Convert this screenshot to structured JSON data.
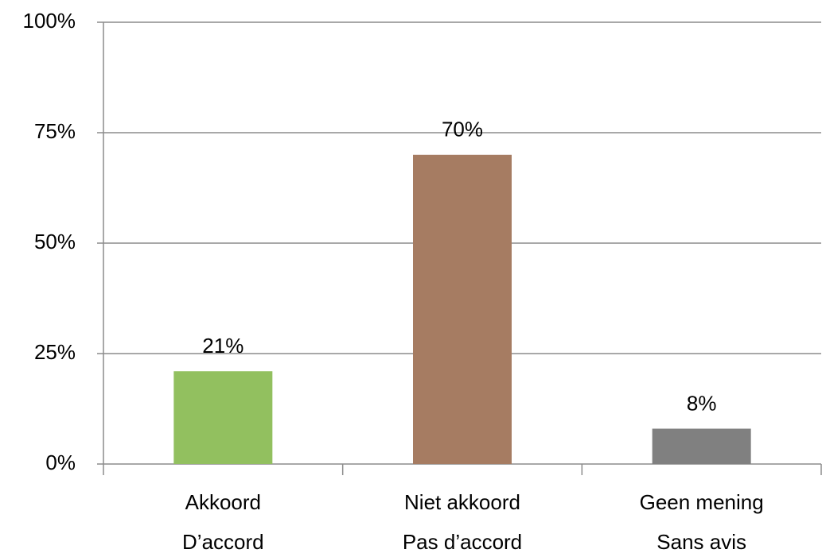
{
  "chart_data": {
    "type": "bar",
    "categories": [
      [
        "Akkoord",
        "D’accord"
      ],
      [
        "Niet akkoord",
        "Pas d’accord"
      ],
      [
        "Geen mening",
        "Sans avis"
      ]
    ],
    "values": [
      21,
      70,
      8
    ],
    "value_labels": [
      "21%",
      "70%",
      "8%"
    ],
    "colors": [
      "#92c05f",
      "#a67c62",
      "#808080"
    ],
    "ylim": [
      0,
      100
    ],
    "yticks": [
      {
        "value": 0,
        "label": "0%"
      },
      {
        "value": 25,
        "label": "25%"
      },
      {
        "value": 50,
        "label": "50%"
      },
      {
        "value": 75,
        "label": "75%"
      },
      {
        "value": 100,
        "label": "100%"
      }
    ],
    "grid": true
  }
}
